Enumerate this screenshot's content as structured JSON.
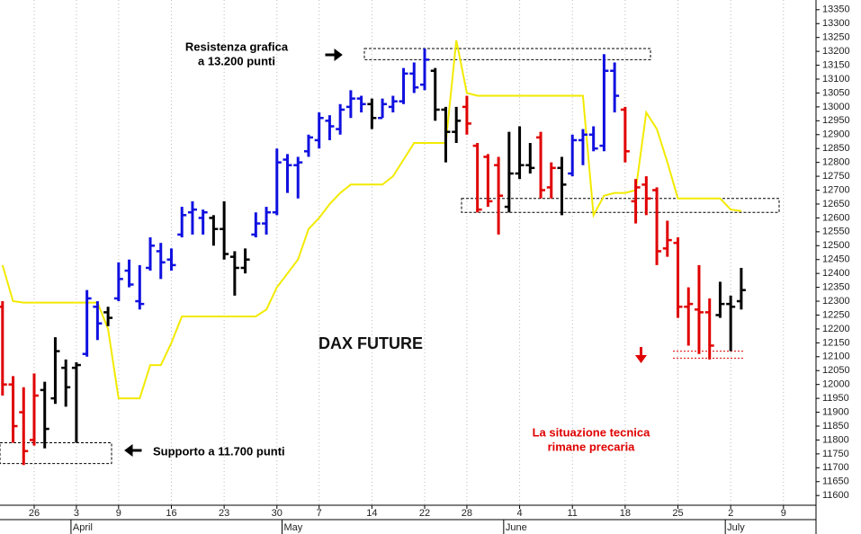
{
  "chart_data": {
    "type": "ohlc",
    "title": "DAX FUTURE",
    "categories": [
      null,
      null,
      null,
      "26",
      null,
      null,
      null,
      "3",
      null,
      null,
      null,
      "9",
      null,
      null,
      null,
      null,
      "16",
      null,
      null,
      null,
      null,
      "23",
      null,
      null,
      null,
      null,
      "30",
      null,
      null,
      null,
      "7",
      null,
      null,
      null,
      null,
      "14",
      null,
      null,
      null,
      null,
      "22",
      null,
      null,
      null,
      "28",
      null,
      null,
      null,
      null,
      "4",
      null,
      null,
      null,
      null,
      "11",
      null,
      null,
      null,
      null,
      "18",
      null,
      null,
      null,
      null,
      "25",
      null,
      null,
      null,
      null,
      "2",
      null,
      null,
      null,
      null,
      "9"
    ],
    "months": [
      null,
      null,
      null,
      null,
      null,
      null,
      null,
      "April",
      null,
      null,
      null,
      null,
      null,
      null,
      null,
      null,
      null,
      null,
      null,
      null,
      null,
      null,
      null,
      null,
      null,
      null,
      null,
      "May",
      null,
      null,
      null,
      null,
      null,
      null,
      null,
      null,
      null,
      null,
      null,
      null,
      null,
      null,
      null,
      null,
      null,
      null,
      null,
      null,
      "June",
      null,
      null,
      null,
      null,
      null,
      null,
      null,
      null,
      null,
      null,
      null,
      null,
      null,
      null,
      null,
      null,
      null,
      null,
      null,
      null,
      "July",
      null,
      null,
      null,
      null,
      null
    ],
    "open": [
      12280,
      12000,
      11900,
      11800,
      11980,
      11950,
      12060,
      12060,
      12110,
      12280,
      12260,
      12310,
      12410,
      12300,
      12420,
      12480,
      12450,
      12540,
      12620,
      12600,
      12600,
      12560,
      12460,
      12420,
      12540,
      12580,
      12620,
      12810,
      12790,
      12840,
      12880,
      12950,
      12920,
      13000,
      13030,
      13010,
      12960,
      13000,
      13020,
      13120,
      13080,
      13130,
      12990,
      12910,
      13000,
      12860,
      12820,
      12790,
      12640,
      12760,
      12790,
      12890,
      12710,
      12780,
      12760,
      12880,
      12900,
      12860,
      13130,
      12990,
      12660,
      12720,
      12700,
      12490,
      12510,
      12280,
      12270,
      12260,
      12250,
      12290,
      12300,
      null,
      null,
      null,
      null
    ],
    "high": [
      12300,
      12030,
      11990,
      12040,
      12010,
      12170,
      12090,
      12080,
      12340,
      12300,
      12280,
      12440,
      12450,
      12430,
      12530,
      12510,
      12490,
      12640,
      12660,
      12630,
      12610,
      12660,
      12480,
      12490,
      12620,
      12640,
      12850,
      12830,
      12820,
      12900,
      12980,
      12970,
      13010,
      13060,
      13040,
      13030,
      13030,
      13040,
      13140,
      13160,
      13210,
      13140,
      13000,
      13000,
      13040,
      12870,
      12830,
      12820,
      12910,
      12930,
      12870,
      12910,
      12800,
      12820,
      12900,
      12920,
      12930,
      13190,
      13160,
      13000,
      12740,
      12750,
      12710,
      12590,
      12530,
      12350,
      12430,
      12310,
      12370,
      12320,
      12420,
      null,
      null,
      null,
      null
    ],
    "low": [
      11960,
      11790,
      11710,
      11780,
      11770,
      11930,
      11920,
      11790,
      12100,
      12160,
      12210,
      12300,
      12350,
      12270,
      12410,
      12380,
      12410,
      12530,
      12540,
      12540,
      12500,
      12450,
      12320,
      12400,
      12530,
      12540,
      12610,
      12690,
      12670,
      12820,
      12850,
      12880,
      12900,
      12960,
      12980,
      12920,
      12960,
      12980,
      13010,
      13050,
      13060,
      12950,
      12800,
      12870,
      12900,
      12620,
      12640,
      12540,
      12620,
      12740,
      12760,
      12670,
      12670,
      12610,
      12750,
      12790,
      12840,
      12840,
      12980,
      12800,
      12580,
      12610,
      12430,
      12460,
      12240,
      12140,
      12110,
      12090,
      12240,
      12120,
      12270,
      null,
      null,
      null,
      null
    ],
    "close": [
      12000,
      11850,
      11760,
      11960,
      11840,
      12120,
      11990,
      12070,
      12310,
      12220,
      12240,
      12380,
      12360,
      12290,
      12500,
      12440,
      12430,
      12610,
      12630,
      12620,
      12560,
      12470,
      12420,
      12450,
      12580,
      12620,
      12800,
      12790,
      12800,
      12890,
      12960,
      12930,
      12990,
      13030,
      13010,
      12960,
      13010,
      13020,
      13120,
      13070,
      13170,
      12990,
      12910,
      12950,
      12940,
      12630,
      12660,
      12680,
      12760,
      12790,
      12780,
      12700,
      12780,
      12720,
      12880,
      12900,
      12850,
      13130,
      13040,
      12840,
      12710,
      12670,
      12480,
      12520,
      12280,
      12290,
      12260,
      12140,
      12290,
      12280,
      12340,
      null,
      null,
      null,
      null
    ],
    "colors": [
      "#e00000",
      "#e00000",
      "#e00000",
      "#e00000",
      "#000000",
      "#000000",
      "#000000",
      "#000000",
      "#1010e0",
      "#1010e0",
      "#000000",
      "#1010e0",
      "#1010e0",
      "#1010e0",
      "#1010e0",
      "#1010e0",
      "#1010e0",
      "#1010e0",
      "#1010e0",
      "#1010e0",
      "#000000",
      "#000000",
      "#000000",
      "#000000",
      "#1010e0",
      "#1010e0",
      "#1010e0",
      "#1010e0",
      "#1010e0",
      "#1010e0",
      "#1010e0",
      "#1010e0",
      "#1010e0",
      "#1010e0",
      "#1010e0",
      "#000000",
      "#1010e0",
      "#1010e0",
      "#1010e0",
      "#1010e0",
      "#1010e0",
      "#000000",
      "#000000",
      "#000000",
      "#e00000",
      "#e00000",
      "#e00000",
      "#e00000",
      "#000000",
      "#000000",
      "#000000",
      "#e00000",
      "#e00000",
      "#000000",
      "#1010e0",
      "#1010e0",
      "#1010e0",
      "#1010e0",
      "#1010e0",
      "#e00000",
      "#e00000",
      "#e00000",
      "#e00000",
      "#e00000",
      "#e00000",
      "#e00000",
      "#e00000",
      "#e00000",
      "#000000",
      "#000000",
      "#000000",
      null,
      null,
      null,
      null
    ],
    "line_color": "#f2ea00",
    "line_values": [
      12430,
      12300,
      12295,
      12295,
      12295,
      12295,
      12295,
      12295,
      12295,
      12295,
      12200,
      11950,
      11950,
      11950,
      12070,
      12070,
      12150,
      12245,
      12245,
      12245,
      12245,
      12245,
      12245,
      12245,
      12245,
      12270,
      12350,
      12400,
      12450,
      12560,
      12600,
      12650,
      12690,
      12720,
      12720,
      12720,
      12720,
      12750,
      12810,
      12870,
      12870,
      12870,
      12870,
      13240,
      13050,
      13040,
      13040,
      13040,
      13040,
      13040,
      13040,
      13040,
      13040,
      13040,
      13040,
      13040,
      12610,
      12680,
      12690,
      12690,
      12700,
      12980,
      12920,
      12800,
      12670,
      12670,
      12670,
      12670,
      12670,
      12630,
      12625,
      null,
      null,
      null,
      null
    ],
    "zones": [
      [
        13170,
        13210
      ],
      [
        12620,
        12670
      ],
      [
        11715,
        11790
      ]
    ],
    "target_lines": [
      12095,
      12120
    ],
    "target_color": "#e00000",
    "annotations": [
      {
        "lines": [
          "Resistenza grafica",
          "a 13.200 punti"
        ],
        "color": "#000000"
      },
      {
        "lines": [
          "Supporto a 11.700 punti"
        ],
        "color": "#000000"
      },
      {
        "lines": [
          "La situazione tecnica",
          "rimane precaria"
        ],
        "color": "#e00000"
      }
    ],
    "ylim": [
      11565,
      13385
    ],
    "yticks": [
      11600,
      11650,
      11700,
      11750,
      11800,
      11850,
      11900,
      11950,
      12000,
      12050,
      12100,
      12150,
      12200,
      12250,
      12300,
      12350,
      12400,
      12450,
      12500,
      12550,
      12600,
      12650,
      12700,
      12750,
      12800,
      12850,
      12900,
      12950,
      13000,
      13050,
      13100,
      13150,
      13200,
      13250,
      13300,
      13350
    ],
    "grid": true
  }
}
